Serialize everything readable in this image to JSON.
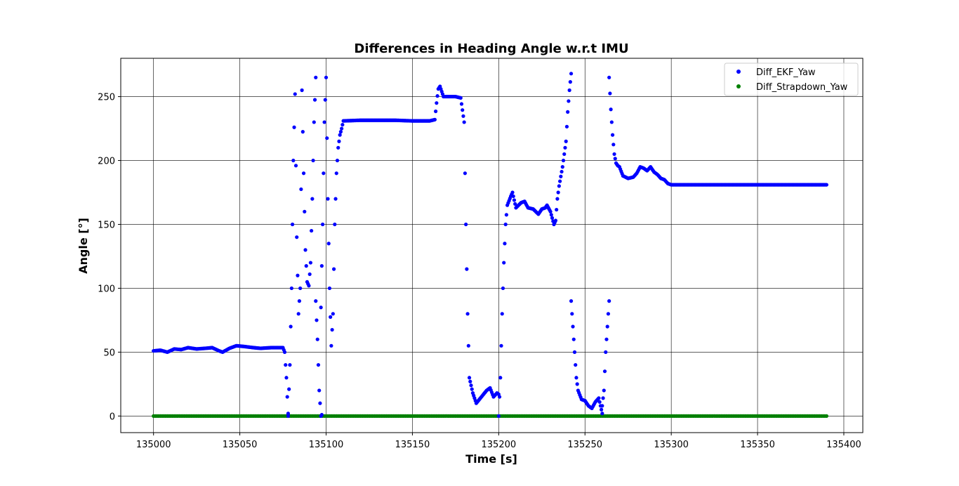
{
  "chart_data": {
    "type": "scatter",
    "title": "Differences in Heading Angle w.r.t IMU",
    "xlabel": "Time [s]",
    "ylabel": "Angle [°]",
    "xlim": [
      134981,
      135411
    ],
    "ylim": [
      -13,
      280
    ],
    "xticks": [
      135000,
      135050,
      135100,
      135150,
      135200,
      135250,
      135300,
      135350,
      135400
    ],
    "yticks": [
      0,
      50,
      100,
      150,
      200,
      250
    ],
    "grid": true,
    "legend_position": "top-right",
    "series": [
      {
        "name": "Diff_EKF_Yaw",
        "color": "#0000ff",
        "marker": "dot",
        "sample_interval": 0.5,
        "segments": [
          [
            [
              135000,
              51
            ],
            [
              135004,
              51.5
            ],
            [
              135008,
              50
            ],
            [
              135012,
              52.5
            ],
            [
              135016,
              52
            ],
            [
              135020,
              53.5
            ],
            [
              135025,
              52.5
            ],
            [
              135030,
              53
            ],
            [
              135034,
              53.5
            ],
            [
              135038,
              51
            ],
            [
              135040,
              50
            ],
            [
              135044,
              53
            ],
            [
              135048,
              55
            ],
            [
              135052,
              54.5
            ],
            [
              135058,
              53.5
            ],
            [
              135062,
              53
            ],
            [
              135068,
              53.5
            ],
            [
              135075,
              53.5
            ],
            [
              135076,
              50
            ],
            [
              135077,
              30
            ],
            [
              135078,
              0
            ]
          ],
          [
            [
              135078,
              2
            ],
            [
              135079,
              40
            ],
            [
              135080,
              100
            ],
            [
              135081,
              200
            ],
            [
              135082,
              252
            ],
            [
              135083,
              140
            ],
            [
              135084,
              80
            ],
            [
              135085,
              100
            ],
            [
              135086,
              255
            ],
            [
              135087,
              190
            ],
            [
              135088,
              130
            ],
            [
              135089,
              105
            ],
            [
              135090,
              102
            ],
            [
              135091,
              120
            ],
            [
              135092,
              170
            ],
            [
              135093,
              230
            ],
            [
              135094,
              265
            ]
          ],
          [
            [
              135094,
              90
            ],
            [
              135095,
              60
            ],
            [
              135096,
              20
            ],
            [
              135097,
              0
            ],
            [
              135097.5,
              1
            ]
          ],
          [
            [
              135097,
              85
            ],
            [
              135098,
              150
            ],
            [
              135099,
              230
            ],
            [
              135100,
              265
            ],
            [
              135101,
              170
            ],
            [
              135102,
              100
            ],
            [
              135103,
              55
            ],
            [
              135104,
              80
            ],
            [
              135105,
              150
            ],
            [
              135106,
              190
            ],
            [
              135107,
              210
            ],
            [
              135108,
              220
            ],
            [
              135109,
              225
            ],
            [
              135110,
              231
            ],
            [
              135120,
              231.5
            ],
            [
              135140,
              231.5
            ],
            [
              135150,
              231
            ],
            [
              135160,
              231
            ],
            [
              135163,
              232
            ],
            [
              135164,
              245
            ],
            [
              135165,
              256
            ],
            [
              135166,
              258
            ],
            [
              135168,
              250
            ],
            [
              135175,
              250
            ],
            [
              135178,
              249
            ],
            [
              135180,
              230
            ],
            [
              135181,
              150
            ],
            [
              135182,
              80
            ],
            [
              135183,
              30
            ],
            [
              135185,
              18
            ],
            [
              135187,
              10
            ],
            [
              135190,
              15
            ],
            [
              135193,
              20
            ],
            [
              135195,
              22
            ],
            [
              135197,
              15
            ],
            [
              135199,
              18
            ],
            [
              135200,
              17
            ]
          ],
          [
            [
              135200,
              0
            ],
            [
              135201,
              30
            ],
            [
              135202,
              80
            ],
            [
              135203,
              120
            ],
            [
              135204,
              150
            ],
            [
              135205,
              165
            ],
            [
              135207,
              172
            ],
            [
              135208,
              175
            ],
            [
              135210,
              163
            ],
            [
              135213,
              167
            ],
            [
              135215,
              168
            ],
            [
              135217,
              163
            ],
            [
              135220,
              162
            ],
            [
              135223,
              158
            ],
            [
              135225,
              162
            ],
            [
              135227,
              163
            ],
            [
              135228,
              165
            ],
            [
              135230,
              160
            ],
            [
              135232,
              150
            ],
            [
              135233,
              153
            ],
            [
              135234,
              170
            ],
            [
              135235,
              180
            ],
            [
              135237,
              195
            ],
            [
              135239,
              215
            ],
            [
              135240,
              238
            ],
            [
              135241,
              255
            ],
            [
              135242,
              268
            ]
          ],
          [
            [
              135242,
              90
            ],
            [
              135243,
              70
            ],
            [
              135244,
              50
            ],
            [
              135245,
              30
            ],
            [
              135246,
              20
            ],
            [
              135248,
              13
            ],
            [
              135250,
              12
            ],
            [
              135252,
              8
            ],
            [
              135254,
              6
            ],
            [
              135256,
              11
            ],
            [
              135258,
              14
            ],
            [
              135260,
              2
            ]
          ],
          [
            [
              135260,
              8
            ],
            [
              135261,
              20
            ],
            [
              135262,
              50
            ],
            [
              135263,
              70
            ],
            [
              135264,
              90
            ]
          ],
          [
            [
              135264,
              265
            ],
            [
              135265,
              240
            ],
            [
              135266,
              220
            ],
            [
              135267,
              205
            ],
            [
              135268,
              198
            ],
            [
              135269,
              196
            ],
            [
              135270,
              195
            ],
            [
              135272,
              188
            ],
            [
              135275,
              186
            ],
            [
              135278,
              187
            ],
            [
              135280,
              190
            ],
            [
              135282,
              195
            ],
            [
              135284,
              194
            ],
            [
              135286,
              192
            ],
            [
              135288,
              195
            ],
            [
              135290,
              191
            ],
            [
              135292,
              189
            ],
            [
              135294,
              186
            ],
            [
              135296,
              185
            ],
            [
              135298,
              182
            ],
            [
              135300,
              181
            ],
            [
              135320,
              181
            ],
            [
              135350,
              181
            ],
            [
              135390,
              181
            ]
          ]
        ]
      },
      {
        "name": "Diff_Strapdown_Yaw",
        "color": "#008000",
        "marker": "dot",
        "sample_interval": 1,
        "segments": [
          [
            [
              135000,
              0
            ],
            [
              135390,
              0
            ]
          ]
        ]
      }
    ]
  }
}
